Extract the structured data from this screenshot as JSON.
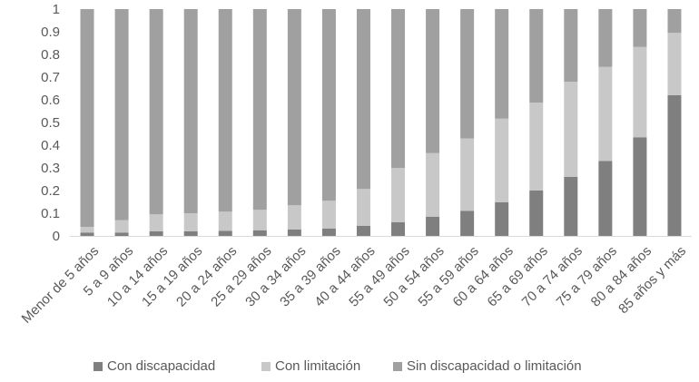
{
  "chart_data": {
    "type": "bar",
    "stacked": true,
    "categories": [
      "Menor de 5 años",
      "5 a 9 años",
      "10 a 14 años",
      "15 a 19 años",
      "20 a 24 años",
      "25 a 29 años",
      "30 a 34 años",
      "35 a 39 años",
      "40 a 44 años",
      "55 a 49 años",
      "50 a 54 años",
      "55 a 59 años",
      "60 a 64 años",
      "65 a 69 años",
      "70 a 74 años",
      "75 a 79 años",
      "80 a 84 años",
      "85 años y más"
    ],
    "series": [
      {
        "name": "Con discapacidad",
        "color": "#7f7f7f",
        "values": [
          0.015,
          0.015,
          0.02,
          0.02,
          0.022,
          0.025,
          0.028,
          0.032,
          0.045,
          0.06,
          0.085,
          0.11,
          0.148,
          0.2,
          0.26,
          0.33,
          0.435,
          0.62
        ]
      },
      {
        "name": "Con limitación",
        "color": "#c8c8c8",
        "values": [
          0.025,
          0.055,
          0.075,
          0.08,
          0.085,
          0.09,
          0.107,
          0.123,
          0.162,
          0.24,
          0.28,
          0.32,
          0.369,
          0.388,
          0.42,
          0.415,
          0.398,
          0.275
        ]
      },
      {
        "name": "Sin discapacidad o limitación",
        "color": "#a0a0a0",
        "values": [
          0.96,
          0.93,
          0.905,
          0.9,
          0.893,
          0.885,
          0.865,
          0.845,
          0.793,
          0.7,
          0.635,
          0.57,
          0.483,
          0.412,
          0.32,
          0.255,
          0.167,
          0.105
        ]
      }
    ],
    "ylim": [
      0,
      1
    ],
    "yticks": [
      "0",
      "0.1",
      "0.2",
      "0.3",
      "0.4",
      "0.5",
      "0.6",
      "0.7",
      "0.8",
      "0.9",
      "1"
    ],
    "grid": false,
    "legend_position": "bottom"
  }
}
